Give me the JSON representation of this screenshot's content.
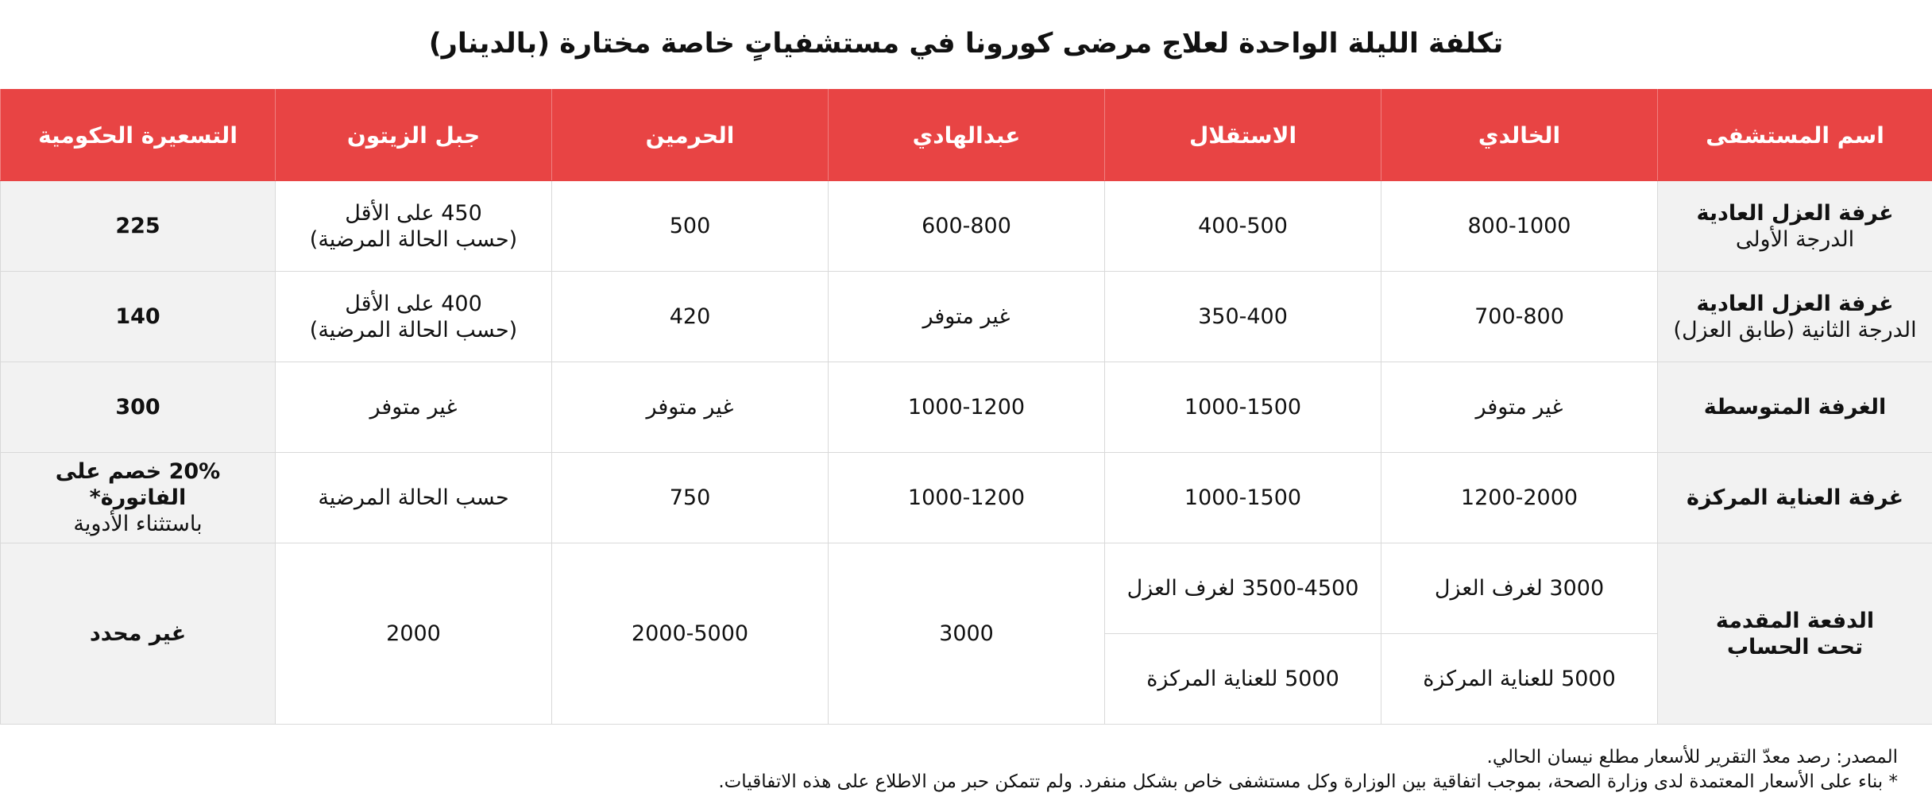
{
  "title": "تكلفة الليلة الواحدة لعلاج مرضى كورونا في مستشفياتٍ خاصة مختارة (بالدينار)",
  "header": {
    "hospital_name": "اسم المستشفى",
    "khalidi": "الخالدي",
    "istiklal": "الاستقلال",
    "abdulhadi": "عبدالهادي",
    "haramain": "الحرمين",
    "jabal_zaytoun": "جبل الزيتون",
    "gov_price": "التسعيرة الحكومية"
  },
  "rows": [
    {
      "label_main": "غرفة العزل العادية",
      "label_sub": "الدرجة الأولى",
      "khalidi": "800-1000",
      "istiklal": "400-500",
      "abdulhadi": "600-800",
      "haramain": "500",
      "jabal_line1": "450 على الأقل",
      "jabal_line2": "(حسب الحالة المرضية)",
      "gov": "225"
    },
    {
      "label_main": "غرفة العزل العادية",
      "label_sub": "الدرجة الثانية (طابق العزل)",
      "khalidi": "700-800",
      "istiklal": "350-400",
      "abdulhadi": "غير متوفر",
      "haramain": "420",
      "jabal_line1": "400 على الأقل",
      "jabal_line2": "(حسب الحالة المرضية)",
      "gov": "140"
    },
    {
      "label_main": "الغرفة المتوسطة",
      "khalidi": "غير متوفر",
      "istiklal": "1000-1500",
      "abdulhadi": "1000-1200",
      "haramain": "غير متوفر",
      "jabal": "غير متوفر",
      "gov": "300"
    },
    {
      "label_main": "غرفة العناية المركزة",
      "khalidi": "1200-2000",
      "istiklal": "1000-1500",
      "abdulhadi": "1000-1200",
      "haramain": "750",
      "jabal": "حسب الحالة المرضية",
      "gov_main": "20% خصم على الفاتورة*",
      "gov_sub": "باستثناء الأدوية"
    },
    {
      "label_line1": "الدفعة المقدمة",
      "label_line2": "تحت الحساب",
      "khalidi_a": "3000 لغرف العزل",
      "khalidi_b": "5000 للعناية المركزة",
      "istiklal_a": "3500-4500 لغرف العزل",
      "istiklal_b": "5000 للعناية المركزة",
      "abdulhadi": "3000",
      "haramain": "2000-5000",
      "jabal": "2000",
      "gov": "غير محدد"
    }
  ],
  "footnotes": {
    "source": "المصدر: رصد معدّ التقرير للأسعار مطلع نيسان الحالي.",
    "note": "* بناء على الأسعار المعتمدة لدى وزارة الصحة، بموجب اتفاقية بين الوزارة وكل مستشفى خاص بشكل منفرد. ولم تتمكن حبر من الاطلاع على هذه الاتفاقيات."
  },
  "colors": {
    "header_bg": "#e84444",
    "header_text": "#ffffff",
    "shaded_cell": "#f2f2f2",
    "grid": "#d9d9d9"
  }
}
